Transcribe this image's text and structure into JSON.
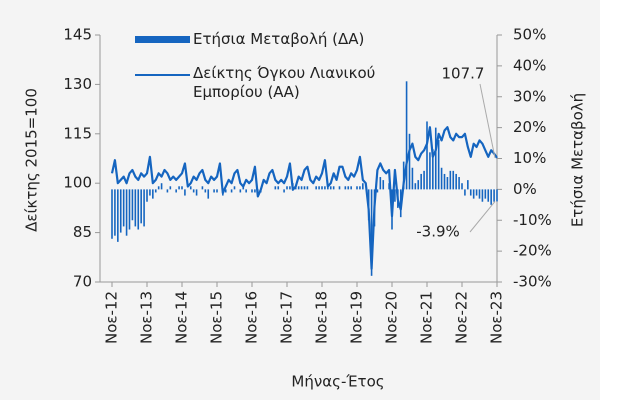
{
  "chart_data": {
    "type": "bar",
    "x_label": "Μήνας-Έτος",
    "y_label": "Δείκτης 2015=100",
    "y2_label": "Ετήσια Μεταβολή",
    "categories": [
      "Νοε-12",
      null,
      null,
      null,
      null,
      null,
      null,
      null,
      null,
      null,
      null,
      null,
      "Νοε-13",
      null,
      null,
      null,
      null,
      null,
      null,
      null,
      null,
      null,
      null,
      null,
      "Νοε-14",
      null,
      null,
      null,
      null,
      null,
      null,
      null,
      null,
      null,
      null,
      null,
      "Νοε-15",
      null,
      null,
      null,
      null,
      null,
      null,
      null,
      null,
      null,
      null,
      null,
      "Νοε-16",
      null,
      null,
      null,
      null,
      null,
      null,
      null,
      null,
      null,
      null,
      null,
      "Νοε-17",
      null,
      null,
      null,
      null,
      null,
      null,
      null,
      null,
      null,
      null,
      null,
      "Νοε-18",
      null,
      null,
      null,
      null,
      null,
      null,
      null,
      null,
      null,
      null,
      null,
      "Νοε-19",
      null,
      null,
      null,
      null,
      null,
      null,
      null,
      null,
      null,
      null,
      null,
      "Νοε-20",
      null,
      null,
      null,
      null,
      null,
      null,
      null,
      null,
      null,
      null,
      null,
      "Νοε-21",
      null,
      null,
      null,
      null,
      null,
      null,
      null,
      null,
      null,
      null,
      null,
      "Νοε-22",
      null,
      null,
      null,
      null,
      null,
      null,
      null,
      null,
      null,
      null,
      null,
      "Νοε-23"
    ],
    "series": [
      {
        "name": "Ετήσια Μεταβολή (ΔΑ)",
        "type": "bar",
        "axis": "y2",
        "color": "#1565c0",
        "values": [
          -16,
          -15,
          -17,
          -14,
          -12,
          -15,
          -13,
          -10,
          -12,
          -13,
          -11,
          -12,
          -4,
          -2,
          -3,
          -1,
          1,
          2,
          0,
          -1,
          1,
          0,
          -1,
          1,
          1,
          -2,
          0,
          1,
          -1,
          -2,
          0,
          1,
          -1,
          -3,
          0,
          -1,
          -1,
          0,
          -2,
          -1,
          0,
          -1,
          1,
          0,
          -1,
          1,
          -1,
          0,
          -1,
          -1,
          -1,
          -1,
          0,
          0,
          0,
          0,
          1,
          1,
          0,
          -1,
          1,
          1,
          2,
          1,
          1,
          1,
          1,
          1,
          0,
          0,
          1,
          1,
          1,
          1,
          1,
          1,
          1,
          0,
          1,
          0,
          1,
          1,
          1,
          0,
          1,
          1,
          2,
          0,
          -10,
          -28,
          -12,
          -1,
          4,
          3,
          0,
          2,
          -13,
          -4,
          -6,
          -9,
          9,
          35,
          18,
          7,
          2,
          3,
          5,
          6,
          22,
          12,
          13,
          20,
          16,
          7,
          5,
          4,
          6,
          6,
          5,
          4,
          2,
          -2,
          3,
          -2,
          -3,
          -2,
          -3,
          -4,
          -3,
          -4,
          -5,
          -4,
          -3.9
        ]
      },
      {
        "name": "Δείκτης Όγκου Λιανικού Εμπορίου (ΑΑ)",
        "type": "line",
        "axis": "y",
        "color": "#1565c0",
        "values": [
          103,
          107,
          100,
          101,
          102,
          100,
          103,
          104,
          102,
          101,
          103,
          102,
          103,
          108,
          100,
          101,
          103,
          102,
          104,
          103,
          101,
          102,
          101,
          102,
          103,
          106,
          99,
          100,
          102,
          101,
          103,
          104,
          101,
          100,
          102,
          101,
          102,
          106,
          97,
          99,
          101,
          100,
          103,
          104,
          100,
          99,
          101,
          100,
          101,
          105,
          96,
          98,
          101,
          100,
          103,
          104,
          101,
          100,
          101,
          100,
          102,
          106,
          98,
          99,
          102,
          101,
          104,
          105,
          101,
          100,
          102,
          101,
          103,
          107,
          99,
          100,
          103,
          101,
          105,
          105,
          102,
          101,
          103,
          102,
          104,
          108,
          101,
          100,
          92,
          74,
          93,
          104,
          106,
          104,
          103,
          104,
          90,
          104,
          95,
          92,
          100,
          106,
          110,
          112,
          108,
          107,
          109,
          110,
          112,
          117,
          108,
          110,
          115,
          113,
          116,
          117,
          114,
          113,
          115,
          114,
          114,
          115,
          111,
          108,
          112,
          111,
          113,
          112,
          110,
          108,
          110,
          109,
          107.7
        ]
      }
    ],
    "annotations": [
      {
        "text": "107.7",
        "series": 1,
        "index": 132
      },
      {
        "text": "-3.9%",
        "series": 0,
        "index": 132
      }
    ],
    "ylim": [
      70,
      145
    ],
    "yticks": [
      70,
      85,
      100,
      115,
      130,
      145
    ],
    "y2lim": [
      -30,
      50
    ],
    "y2ticks": [
      {
        "value": -30,
        "label": "-30%"
      },
      {
        "value": -20,
        "label": "-20%"
      },
      {
        "value": -10,
        "label": "-10%"
      },
      {
        "value": 0,
        "label": "0%"
      },
      {
        "value": 10,
        "label": "10%"
      },
      {
        "value": 20,
        "label": "20%"
      },
      {
        "value": 30,
        "label": "30%"
      },
      {
        "value": 40,
        "label": "40%"
      },
      {
        "value": 50,
        "label": "50%"
      }
    ]
  }
}
